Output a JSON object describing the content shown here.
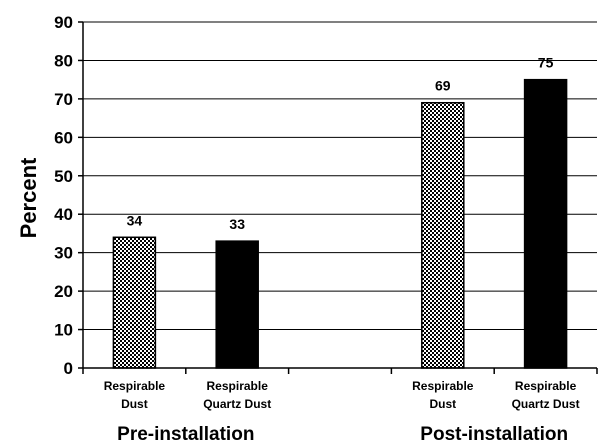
{
  "chart_data": {
    "type": "bar",
    "ylabel": "Percent",
    "ylim": [
      0,
      90
    ],
    "yticks": [
      0,
      10,
      20,
      30,
      40,
      50,
      60,
      70,
      80,
      90
    ],
    "grid": true,
    "groups": [
      {
        "label": "Pre-installation",
        "bars": [
          {
            "category": "Respirable Dust",
            "value": 34,
            "pattern": "checkered"
          },
          {
            "category": "Respirable Quartz Dust",
            "value": 33,
            "pattern": "solid"
          }
        ]
      },
      {
        "label": "Post-installation",
        "bars": [
          {
            "category": "Respirable Dust",
            "value": 69,
            "pattern": "checkered"
          },
          {
            "category": "Respirable Quartz Dust",
            "value": 75,
            "pattern": "solid"
          }
        ]
      }
    ],
    "colors": {
      "solid": "#000000",
      "pattern_fg": "#000000",
      "pattern_bg": "#ffffff"
    }
  }
}
